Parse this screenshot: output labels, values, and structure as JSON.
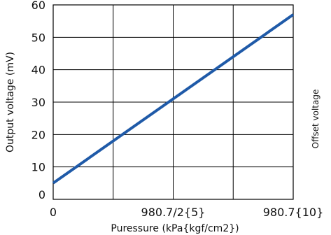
{
  "chart_data": {
    "type": "line",
    "xlabel": "Puressure (kPa{kgf/cm2})",
    "ylabel": "Output voltage (mV)",
    "x_ticks": [
      {
        "value": 0,
        "label": "0"
      },
      {
        "value": 490.35,
        "label": "980.7/2{5}"
      },
      {
        "value": 980.7,
        "label": "980.7{10}"
      }
    ],
    "y_ticks": [
      {
        "value": 0,
        "label": "0"
      },
      {
        "value": 10,
        "label": "10"
      },
      {
        "value": 20,
        "label": "20"
      },
      {
        "value": 30,
        "label": "30"
      },
      {
        "value": 40,
        "label": "40"
      },
      {
        "value": 50,
        "label": "50"
      },
      {
        "value": 60,
        "label": "60"
      }
    ],
    "xlim": [
      0,
      980.7
    ],
    "ylim": [
      0,
      60
    ],
    "grid": true,
    "series": [
      {
        "x": [
          0,
          980.7
        ],
        "y": [
          5,
          57
        ],
        "color": "#1f5aa8"
      }
    ],
    "right_annotation": "Offset voltage"
  }
}
